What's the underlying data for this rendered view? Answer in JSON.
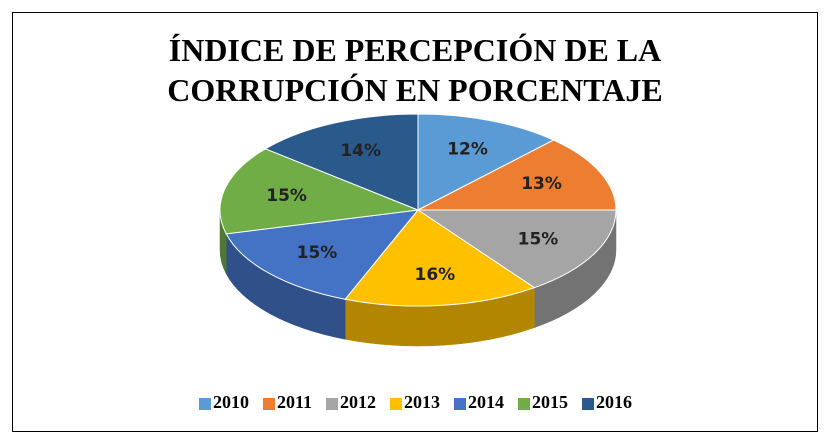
{
  "chart_data": {
    "type": "pie3d",
    "title": "ÍNDICE DE PERCEPCIÓN DE LA CORRUPCIÓN EN PORCENTAJE",
    "categories": [
      "2010",
      "2011",
      "2012",
      "2013",
      "2014",
      "2015",
      "2016"
    ],
    "values": [
      12,
      13,
      15,
      16,
      15,
      15,
      14
    ],
    "value_labels": [
      "12%",
      "13%",
      "15%",
      "16%",
      "15%",
      "15%",
      "14%"
    ],
    "colors": [
      "#5b9bd5",
      "#ed7d31",
      "#a5a5a5",
      "#ffc000",
      "#4472c4",
      "#70ad47",
      "#2a5a8c"
    ],
    "legend": "bottom"
  }
}
